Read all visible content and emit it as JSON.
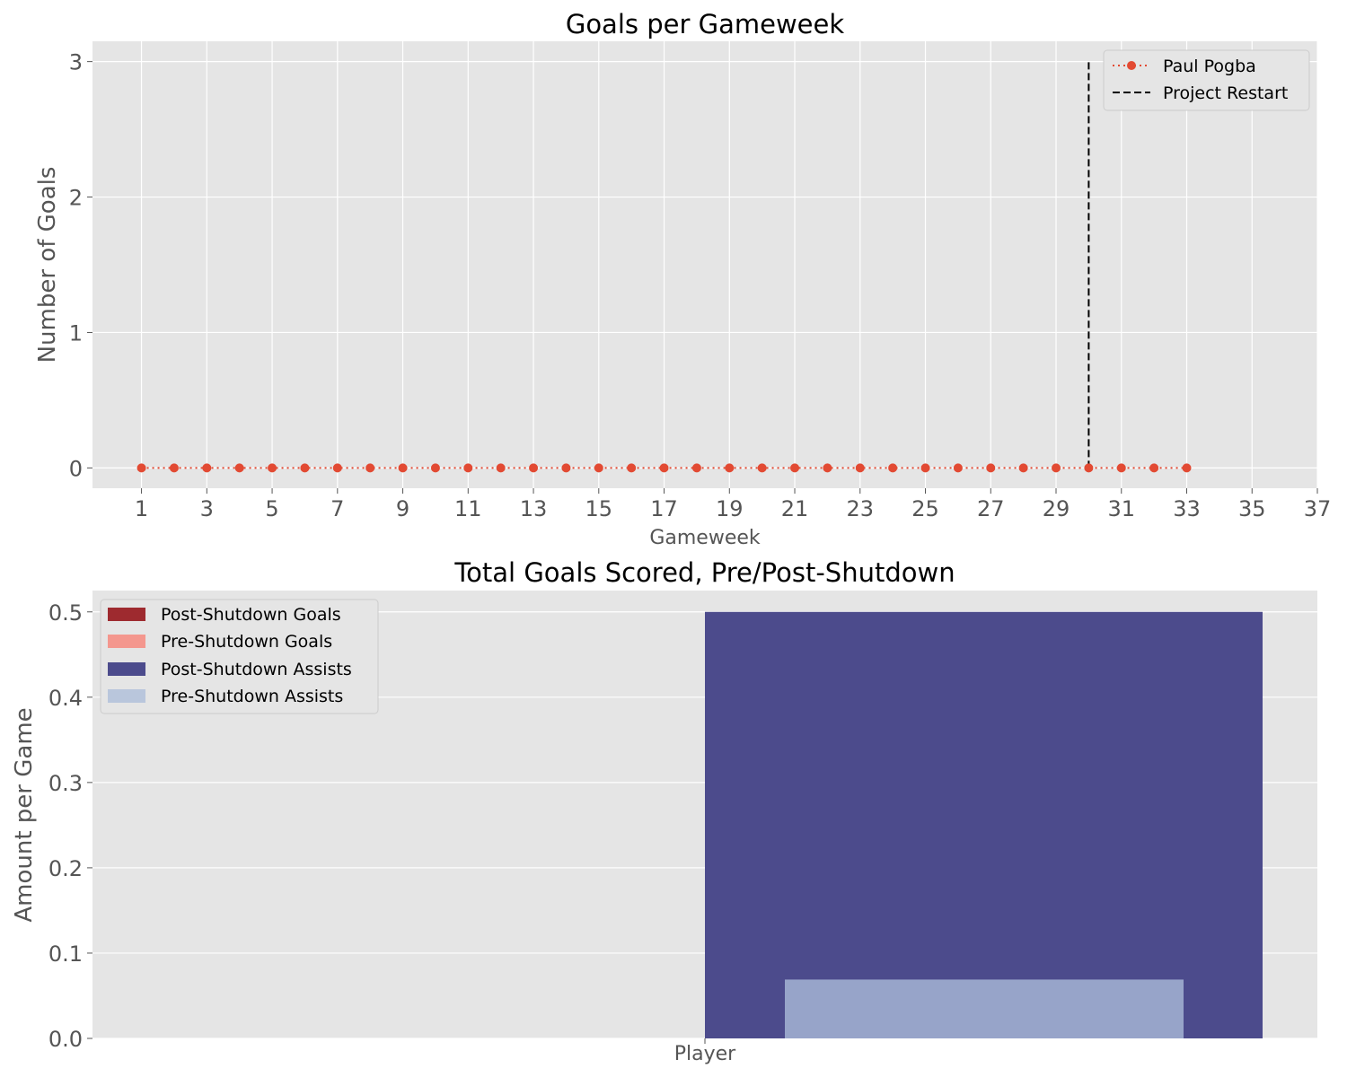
{
  "chart_data": [
    {
      "type": "line",
      "title": "Goals per Gameweek",
      "xlabel": "Gameweek",
      "ylabel": "Number of Goals",
      "xlim": [
        -0.5,
        37
      ],
      "ylim": [
        -0.15,
        3.15
      ],
      "xticks": [
        1,
        3,
        5,
        7,
        9,
        11,
        13,
        15,
        17,
        19,
        21,
        23,
        25,
        27,
        29,
        31,
        33,
        35,
        37
      ],
      "yticks": [
        0,
        1,
        2,
        3
      ],
      "grid": true,
      "legend_position": "top-right",
      "series": [
        {
          "name": "Paul Pogba",
          "style": "dotted line with circle markers",
          "color": "#e24a33",
          "x": [
            1,
            2,
            3,
            4,
            5,
            6,
            7,
            8,
            9,
            10,
            11,
            12,
            13,
            14,
            15,
            16,
            17,
            18,
            19,
            20,
            21,
            22,
            23,
            24,
            25,
            26,
            27,
            28,
            29,
            30,
            31,
            32,
            33
          ],
          "y": [
            0,
            0,
            0,
            0,
            0,
            0,
            0,
            0,
            0,
            0,
            0,
            0,
            0,
            0,
            0,
            0,
            0,
            0,
            0,
            0,
            0,
            0,
            0,
            0,
            0,
            0,
            0,
            0,
            0,
            0,
            0,
            0,
            0
          ]
        },
        {
          "name": "Project Restart",
          "style": "dashed vertical line",
          "color": "#000000",
          "x": [
            30,
            30
          ],
          "y": [
            0,
            3
          ]
        }
      ]
    },
    {
      "type": "bar",
      "title": "Total Goals Scored, Pre/Post-Shutdown",
      "xlabel": "Player",
      "ylabel": "Amount per Game",
      "ylim": [
        0,
        0.525
      ],
      "yticks": [
        0.0,
        0.1,
        0.2,
        0.3,
        0.4,
        0.5
      ],
      "grid": true,
      "legend_position": "top-left",
      "series": [
        {
          "name": "Post-Shutdown Goals",
          "value": 0.0,
          "color": "#9e2a2f"
        },
        {
          "name": "Pre-Shutdown Goals",
          "value": 0.0,
          "color": "#f4978e"
        },
        {
          "name": "Post-Shutdown Assists",
          "value": 0.5,
          "color": "#4c4b8c"
        },
        {
          "name": "Pre-Shutdown Assists",
          "value": 0.069,
          "color": "#b9c6dc"
        }
      ]
    }
  ]
}
